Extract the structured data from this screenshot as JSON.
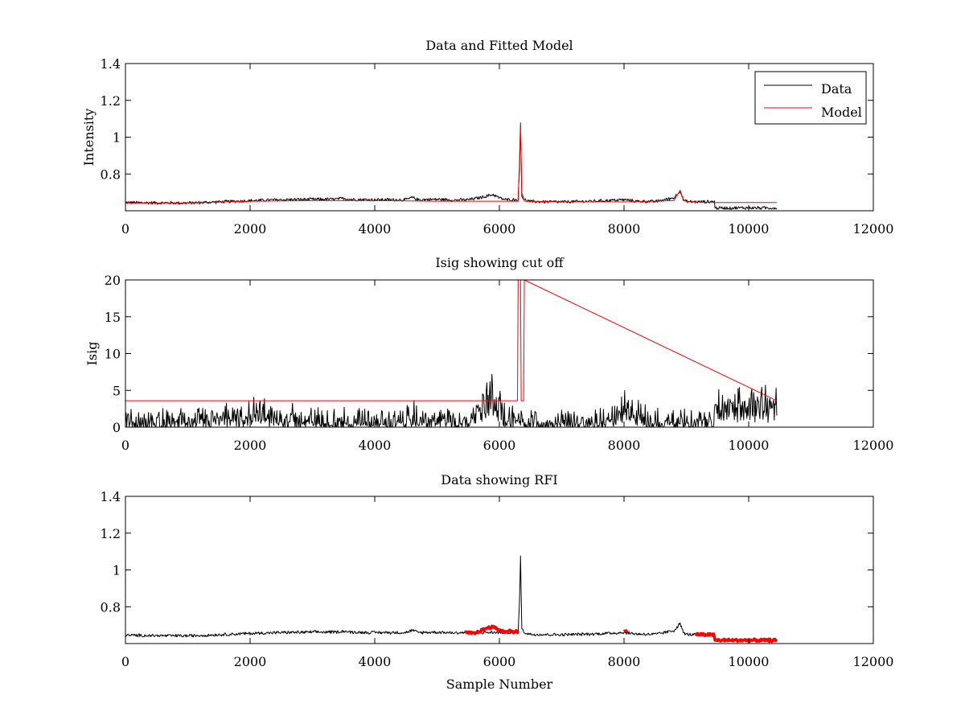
{
  "figure": {
    "background": "#ffffff",
    "data_color": "#000000",
    "model_color": "#ff0000",
    "rfi_color": "#ff0000"
  },
  "chart_data": [
    {
      "type": "line",
      "title": "Data and Fitted Model",
      "xlabel": "",
      "ylabel": "Intensity",
      "xlim": [
        0,
        12000
      ],
      "ylim": [
        0.6,
        1.4
      ],
      "xticks": [
        0,
        2000,
        4000,
        6000,
        8000,
        10000,
        12000
      ],
      "yticks": [
        0.8,
        1,
        1.2,
        1.4
      ],
      "xtick_labels": [
        "0",
        "2000",
        "4000",
        "6000",
        "8000",
        "10000",
        "12000"
      ],
      "ytick_labels": [
        "0.8",
        "1",
        "1.2",
        "1.4"
      ],
      "legend": {
        "placement": "top-right",
        "entries": [
          "Data",
          "Model"
        ]
      },
      "series": [
        {
          "name": "Data",
          "color": "#000000",
          "noise": 0.006,
          "x": [
            0,
            500,
            1000,
            1500,
            2000,
            2500,
            3000,
            3400,
            3500,
            3600,
            4000,
            4500,
            4600,
            4700,
            5000,
            5300,
            5500,
            5700,
            5900,
            6000,
            6100,
            6300,
            6320,
            6340,
            6360,
            6400,
            6500,
            7000,
            7500,
            8000,
            8200,
            8500,
            8800,
            8900,
            8950,
            9000,
            9200,
            9450,
            9460,
            10000,
            10450
          ],
          "y": [
            0.645,
            0.643,
            0.642,
            0.648,
            0.655,
            0.66,
            0.662,
            0.663,
            0.668,
            0.662,
            0.66,
            0.66,
            0.672,
            0.66,
            0.662,
            0.658,
            0.66,
            0.672,
            0.688,
            0.67,
            0.66,
            0.66,
            0.8,
            1.07,
            0.68,
            0.66,
            0.65,
            0.648,
            0.652,
            0.66,
            0.652,
            0.65,
            0.67,
            0.71,
            0.66,
            0.65,
            0.648,
            0.65,
            0.615,
            0.616,
            0.615
          ]
        },
        {
          "name": "Model",
          "color": "#ff0000",
          "noise": 0,
          "x": [
            0,
            1000,
            2000,
            3000,
            4000,
            5000,
            6000,
            6300,
            6320,
            6340,
            6360,
            6400,
            7000,
            8000,
            8800,
            8900,
            8950,
            9000,
            9450,
            10450
          ],
          "y": [
            0.642,
            0.643,
            0.652,
            0.655,
            0.655,
            0.652,
            0.652,
            0.652,
            0.85,
            1.08,
            0.7,
            0.652,
            0.648,
            0.648,
            0.655,
            0.71,
            0.66,
            0.65,
            0.645,
            0.645
          ]
        }
      ]
    },
    {
      "type": "line",
      "title": "Isig showing cut off",
      "xlabel": "",
      "ylabel": "Isig",
      "xlim": [
        0,
        12000
      ],
      "ylim": [
        0,
        20
      ],
      "xticks": [
        0,
        2000,
        4000,
        6000,
        8000,
        10000,
        12000
      ],
      "yticks": [
        0,
        5,
        10,
        15,
        20
      ],
      "xtick_labels": [
        "0",
        "2000",
        "4000",
        "6000",
        "8000",
        "10000",
        "12000"
      ],
      "ytick_labels": [
        "0",
        "5",
        "10",
        "15",
        "20"
      ],
      "series": [
        {
          "color": "#000000",
          "noise": 1.0,
          "x": [
            0,
            1000,
            1500,
            2000,
            2500,
            3000,
            4000,
            4600,
            5000,
            5300,
            5500,
            5700,
            5800,
            5900,
            6000,
            6100,
            6300,
            6500,
            7000,
            7500,
            7800,
            8000,
            8200,
            8400,
            9000,
            9440,
            9460,
            10000,
            10450
          ],
          "y": [
            0.7,
            0.8,
            0.9,
            1.5,
            1.3,
            0.9,
            0.8,
            1.0,
            0.9,
            1.2,
            1.0,
            2.5,
            4.5,
            5.2,
            2.5,
            1.2,
            1.0,
            0.7,
            0.6,
            0.7,
            1.2,
            2.6,
            1.8,
            0.8,
            0.7,
            0.7,
            3.2,
            3.2,
            3.2
          ]
        },
        {
          "color": "#ff0000",
          "noise": 0,
          "x": [
            0,
            6290,
            6300,
            6340,
            6350,
            6390,
            6400,
            10450
          ],
          "y": [
            3.6,
            3.6,
            20,
            20,
            3.6,
            3.6,
            20,
            3.6
          ]
        }
      ]
    },
    {
      "type": "line",
      "title": "Data showing RFI",
      "xlabel": "Sample Number",
      "ylabel": "",
      "xlim": [
        0,
        12000
      ],
      "ylim": [
        0.6,
        1.4
      ],
      "xticks": [
        0,
        2000,
        4000,
        6000,
        8000,
        10000,
        12000
      ],
      "yticks": [
        0.8,
        1,
        1.2,
        1.4
      ],
      "xtick_labels": [
        "0",
        "2000",
        "4000",
        "6000",
        "8000",
        "10000",
        "12000"
      ],
      "ytick_labels": [
        "0.8",
        "1",
        "1.2",
        "1.4"
      ],
      "series": [
        {
          "color": "#000000",
          "noise": 0.006,
          "x": [
            0,
            500,
            1000,
            1500,
            2000,
            2500,
            3000,
            3400,
            3500,
            3600,
            4000,
            4500,
            4600,
            4700,
            5000,
            5300,
            5450,
            6300,
            6320,
            6340,
            6360,
            6400,
            6500,
            7000,
            7500,
            8000,
            8200,
            8500,
            8800,
            8900,
            8950,
            9000,
            9150
          ],
          "y": [
            0.645,
            0.643,
            0.642,
            0.648,
            0.655,
            0.66,
            0.662,
            0.663,
            0.668,
            0.662,
            0.66,
            0.66,
            0.672,
            0.66,
            0.662,
            0.658,
            0.66,
            0.66,
            0.8,
            1.07,
            0.68,
            0.66,
            0.65,
            0.648,
            0.652,
            0.66,
            0.652,
            0.65,
            0.67,
            0.71,
            0.66,
            0.65,
            0.648
          ]
        },
        {
          "color": "#ff0000",
          "noise": 0.005,
          "x": [
            5450,
            5600,
            5700,
            5800,
            5900,
            6000,
            6100,
            6150,
            6200,
            6300
          ],
          "y": [
            0.66,
            0.655,
            0.67,
            0.685,
            0.69,
            0.675,
            0.662,
            0.672,
            0.665,
            0.665
          ]
        },
        {
          "color": "#ff0000",
          "noise": 0.003,
          "x": [
            8000,
            8060
          ],
          "y": [
            0.668,
            0.668
          ]
        },
        {
          "color": "#ff0000",
          "noise": 0.005,
          "x": [
            9150,
            9440,
            9460,
            10450
          ],
          "y": [
            0.65,
            0.648,
            0.618,
            0.618
          ]
        }
      ]
    }
  ]
}
